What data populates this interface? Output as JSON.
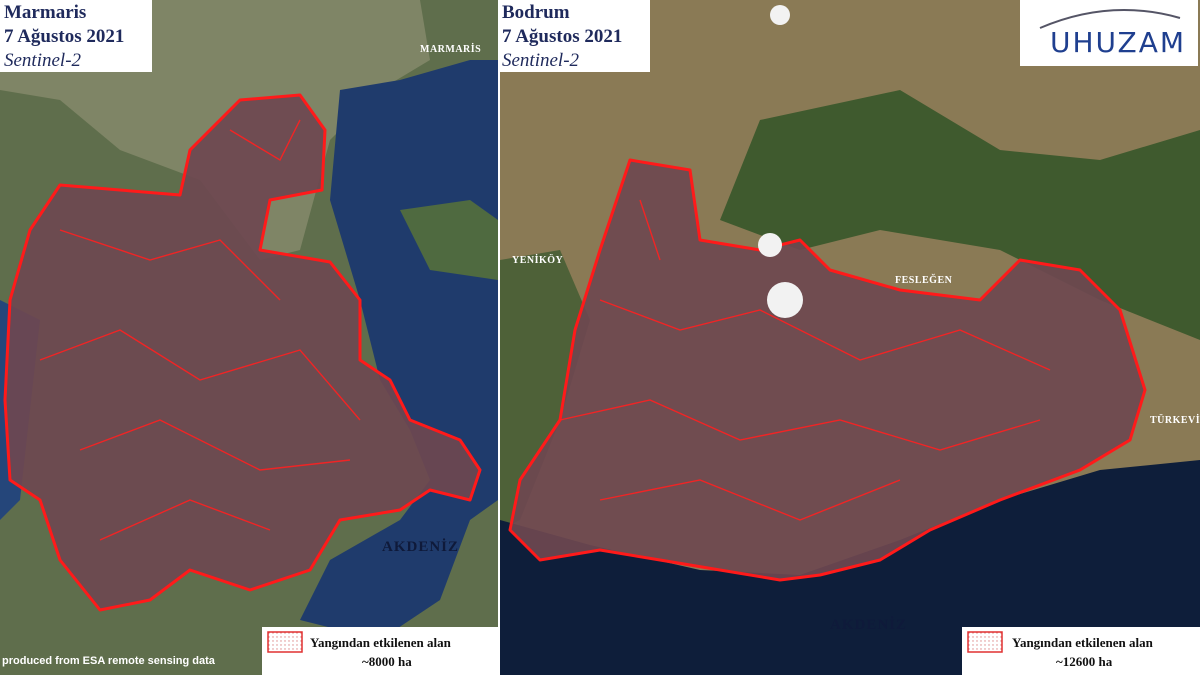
{
  "panels": [
    {
      "title": "Marmaris",
      "date": "7 Ağustos 2021",
      "source": "Sentinel-2",
      "places": [
        "MARMARİS",
        "AKDENİZ"
      ],
      "legend": {
        "label": "Yangından  etkilenen alan",
        "area": "~8000 ha"
      }
    },
    {
      "title": "Bodrum",
      "date": "7 Ağustos 2021",
      "source": "Sentinel-2",
      "places": [
        "YENİKÖY",
        "FESLEĞEN",
        "TÜRKEVİ",
        "AKDENİZ"
      ],
      "legend": {
        "label": "Yangından  etkilenen alan",
        "area": "~12600 ha"
      }
    }
  ],
  "credit": "produced from ESA remote sensing data",
  "logo": "UHUZAM"
}
